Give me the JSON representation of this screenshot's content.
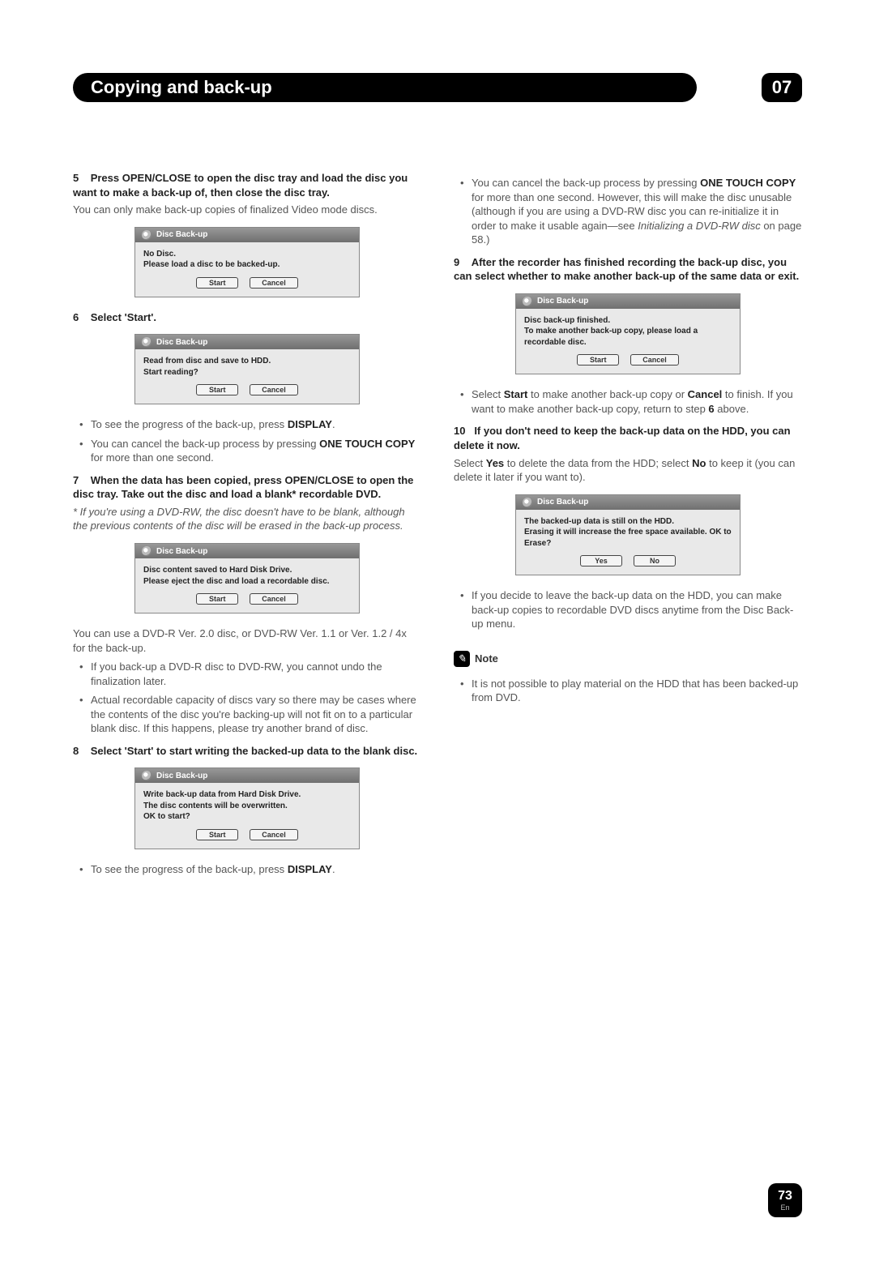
{
  "header": {
    "title": "Copying and back-up",
    "chapter": "07"
  },
  "dlg_common": {
    "title": "Disc Back-up"
  },
  "left": {
    "s5": {
      "num": "5",
      "head_a": "Press ",
      "head_b": " OPEN/CLOSE to open the disc tray and load the disc you want to make a back-up of, then close the disc tray.",
      "body": "You can only make back-up copies of finalized Video mode discs."
    },
    "dlg1": {
      "line1": "No Disc.",
      "line2": "Please load a disc to be backed-up.",
      "btn1": "Start",
      "btn2": "Cancel"
    },
    "s6": {
      "num": "6",
      "head": "Select 'Start'."
    },
    "dlg2": {
      "line1": "Read from disc and save to HDD.",
      "line2": "Start reading?",
      "btn1": "Start",
      "btn2": "Cancel"
    },
    "bullets6": {
      "b1a": "To see the progress of the back-up, press ",
      "b1b": "DISPLAY",
      "b1c": ".",
      "b2a": "You can cancel the back-up process by pressing ",
      "b2b": "ONE TOUCH COPY",
      "b2c": " for more than one second."
    },
    "s7": {
      "num": "7",
      "head": "When the data has been copied, press      OPEN/CLOSE to open the disc tray. Take out the disc and load a blank* recordable DVD.",
      "note": "* If you're using a DVD-RW, the disc doesn't have to be blank, although the previous contents of the disc will be erased in the back-up process."
    },
    "dlg3": {
      "line1": "Disc content saved to Hard Disk Drive.",
      "line2": "Please eject the disc and load a recordable disc.",
      "btn1": "Start",
      "btn2": "Cancel"
    },
    "post7": "You can use a DVD-R Ver. 2.0 disc, or DVD-RW Ver. 1.1 or Ver. 1.2 / 4x  for the back-up.",
    "bullets7": {
      "b1": "If you back-up a DVD-R disc to DVD-RW, you cannot undo the finalization later.",
      "b2": "Actual recordable capacity of discs vary so there may be cases where the contents of the disc you're backing-up will not fit on to a particular blank disc. If this happens, please try another brand of disc."
    },
    "s8": {
      "num": "8",
      "head": "Select 'Start' to start writing the backed-up data to the blank disc."
    },
    "dlg4": {
      "line1": "Write back-up data from Hard Disk Drive.",
      "line2": "The disc contents will be overwritten.",
      "line3": "OK to start?",
      "btn1": "Start",
      "btn2": "Cancel"
    },
    "bullets8": {
      "b1a": "To see the progress of the back-up, press ",
      "b1b": "DISPLAY",
      "b1c": "."
    }
  },
  "right": {
    "bullets_top": {
      "b1a": "You can cancel the back-up process by pressing ",
      "b1b": "ONE TOUCH COPY",
      "b1c": " for more than one second. However, this will make the disc unusable (although if you are using a DVD-RW disc you can re-initialize it in order to make it usable again—see ",
      "b1d": "Initializing a DVD-RW disc",
      "b1e": " on page 58.)"
    },
    "s9": {
      "num": "9",
      "head": "After the recorder has finished recording the back-up disc, you can select whether to make another back-up of the same data or exit."
    },
    "dlg5": {
      "line1": "Disc back-up finished.",
      "line2": "To make another back-up copy, please load a recordable disc.",
      "btn1": "Start",
      "btn2": "Cancel"
    },
    "bullets9": {
      "b1a": "Select ",
      "b1b": "Start",
      "b1c": " to make another back-up copy or ",
      "b1d": "Cancel",
      "b1e": " to finish. If you want to make another back-up copy, return to step ",
      "b1f": "6",
      "b1g": " above."
    },
    "s10": {
      "num": "10",
      "head": "If you don't need to keep the back-up data on the HDD, you can delete it now.",
      "body_a": "Select ",
      "body_b": "Yes",
      "body_c": " to delete the data from the HDD; select ",
      "body_d": "No",
      "body_e": " to keep it (you can delete it later if you want to)."
    },
    "dlg6": {
      "line1": "The backed-up data is still on the HDD.",
      "line2": "Erasing it will increase the free space available. OK to Erase?",
      "btn1": "Yes",
      "btn2": "No"
    },
    "bullets10": {
      "b1": "If you decide to leave the back-up data on the HDD, you can make back-up copies to recordable DVD discs anytime from the Disc Back-up menu."
    },
    "note": {
      "label": "Note",
      "b1": "It is not possible to play material on the HDD that has been backed-up from DVD."
    }
  },
  "page": {
    "num": "73",
    "lang": "En"
  }
}
